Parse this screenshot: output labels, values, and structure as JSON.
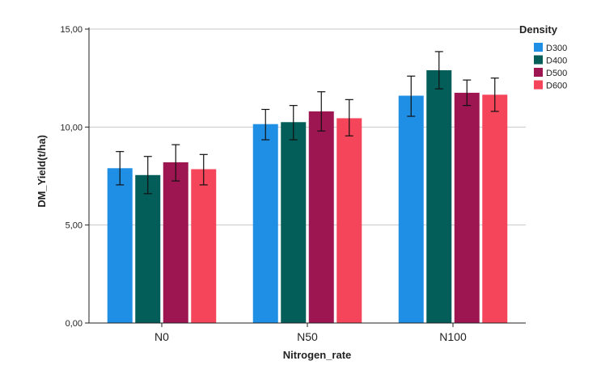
{
  "chart_data": {
    "type": "bar",
    "xlabel": "Nitrogen_rate",
    "ylabel": "DM_Yield(t/ha)",
    "ylim": [
      0,
      15
    ],
    "yticks": [
      0,
      5,
      10,
      15
    ],
    "ytick_labels": [
      "0,00",
      "5,00",
      "10,00",
      "15,00"
    ],
    "grid": true,
    "categories": [
      "N0",
      "N50",
      "N100"
    ],
    "legend": {
      "title": "Density",
      "position": "right"
    },
    "series": [
      {
        "name": "D300",
        "color": "#1f8fe5",
        "values": [
          7.9,
          10.15,
          11.6
        ],
        "error_low": [
          7.05,
          9.35,
          10.55
        ],
        "error_high": [
          8.75,
          10.9,
          12.6
        ]
      },
      {
        "name": "D400",
        "color": "#035d59",
        "values": [
          7.55,
          10.25,
          12.9
        ],
        "error_low": [
          6.6,
          9.35,
          11.95
        ],
        "error_high": [
          8.5,
          11.1,
          13.85
        ]
      },
      {
        "name": "D500",
        "color": "#9e1651",
        "values": [
          8.2,
          10.8,
          11.75
        ],
        "error_low": [
          7.25,
          9.8,
          11.1
        ],
        "error_high": [
          9.1,
          11.8,
          12.4
        ]
      },
      {
        "name": "D600",
        "color": "#f4455a",
        "values": [
          7.85,
          10.45,
          11.65
        ],
        "error_low": [
          7.05,
          9.55,
          10.8
        ],
        "error_high": [
          8.6,
          11.4,
          12.5
        ]
      }
    ]
  }
}
